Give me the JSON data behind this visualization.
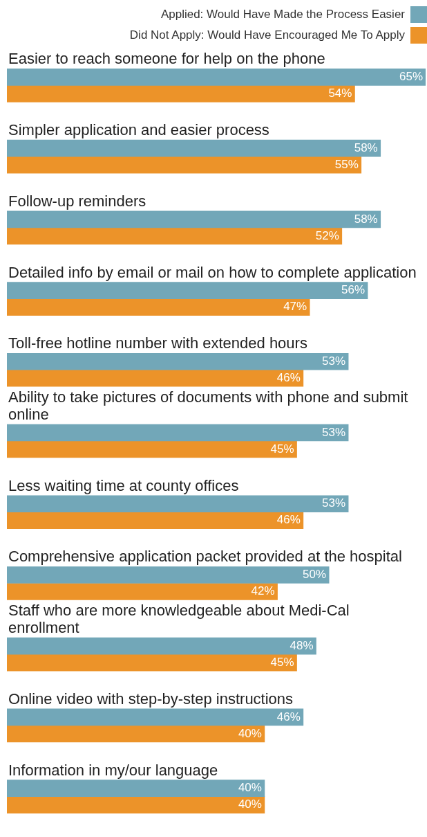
{
  "chart_data": {
    "type": "bar",
    "orientation": "horizontal",
    "legend": "top right",
    "data_labels": true,
    "categories": [
      "Easier to reach someone for help on the phone",
      "Simpler application and easier process",
      "Follow-up reminders",
      "Detailed info by email or mail on how to complete application",
      "Toll-free hotline number with extended hours",
      "Ability to take pictures of documents with phone and submit online",
      "Less waiting time at county offices",
      "Comprehensive application packet provided at the hospital",
      "Staff who are more knowledgeable about Medi-Cal enrollment",
      "Online video with step-by-step instructions",
      "Information in my/our language"
    ],
    "series": [
      {
        "name": "Applied: Would Have Made the Process Easier",
        "color": "#72a7b8",
        "values": [
          65,
          58,
          58,
          56,
          53,
          53,
          53,
          50,
          48,
          46,
          40
        ],
        "value_labels": [
          "65%",
          "58%",
          "58%",
          "56%",
          "53%",
          "53%",
          "53%",
          "50%",
          "48%",
          "46%",
          "40%"
        ]
      },
      {
        "name": "Did Not Apply: Would Have Encouraged Me To Apply",
        "color": "#ec9329",
        "values": [
          54,
          55,
          52,
          47,
          46,
          45,
          46,
          42,
          45,
          40,
          40
        ],
        "value_labels": [
          "54%",
          "55%",
          "52%",
          "47%",
          "46%",
          "45%",
          "46%",
          "42%",
          "45%",
          "40%",
          "40%"
        ]
      }
    ]
  }
}
